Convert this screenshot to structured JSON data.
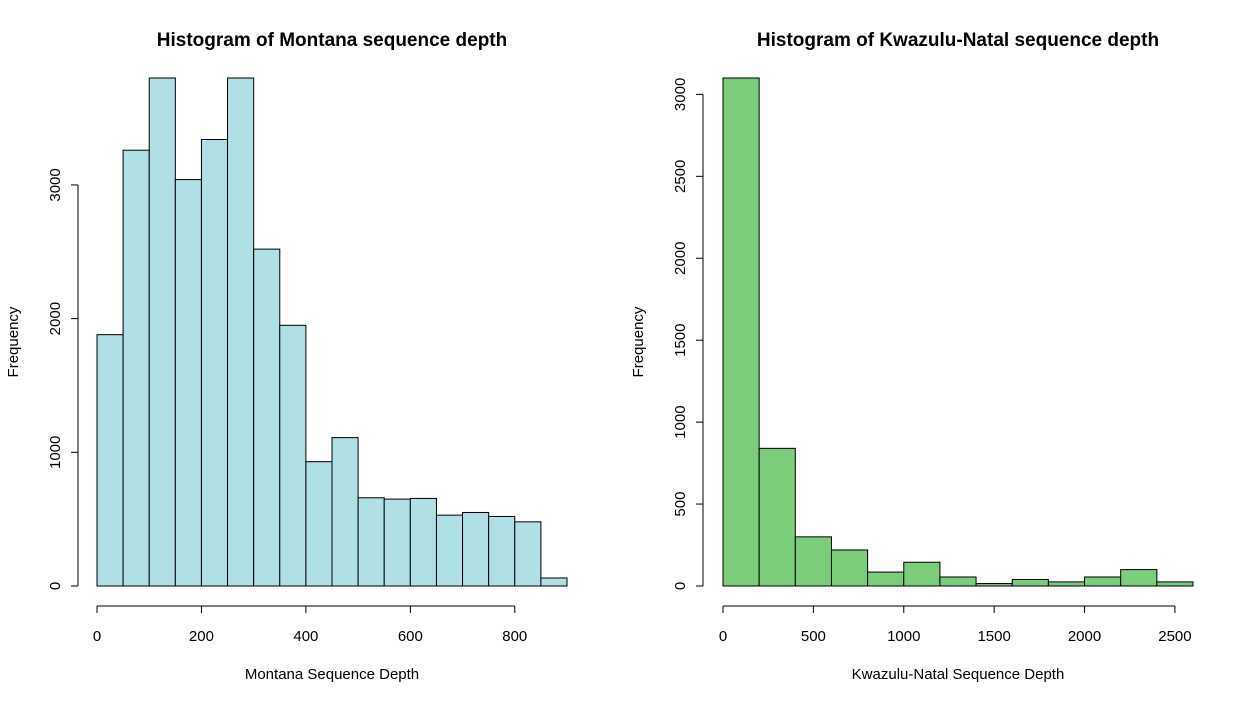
{
  "chart_data": [
    {
      "type": "bar",
      "title": "Histogram of Montana sequence depth",
      "xlabel": "Montana Sequence Depth",
      "ylabel": "Frequency",
      "bar_color": "#b0dfe5",
      "xlim": [
        0,
        900
      ],
      "ylim": [
        0,
        3800
      ],
      "x_ticks": [
        0,
        200,
        400,
        600,
        800
      ],
      "y_ticks": [
        0,
        1000,
        2000,
        3000
      ],
      "bins": [
        {
          "start": 0,
          "end": 50,
          "count": 1880
        },
        {
          "start": 50,
          "end": 100,
          "count": 3260
        },
        {
          "start": 100,
          "end": 150,
          "count": 3810
        },
        {
          "start": 150,
          "end": 200,
          "count": 3040
        },
        {
          "start": 200,
          "end": 250,
          "count": 3340
        },
        {
          "start": 250,
          "end": 300,
          "count": 3800
        },
        {
          "start": 300,
          "end": 350,
          "count": 2520
        },
        {
          "start": 350,
          "end": 400,
          "count": 1950
        },
        {
          "start": 400,
          "end": 450,
          "count": 930
        },
        {
          "start": 450,
          "end": 500,
          "count": 1110
        },
        {
          "start": 500,
          "end": 550,
          "count": 660
        },
        {
          "start": 550,
          "end": 600,
          "count": 650
        },
        {
          "start": 600,
          "end": 650,
          "count": 655
        },
        {
          "start": 650,
          "end": 700,
          "count": 530
        },
        {
          "start": 700,
          "end": 750,
          "count": 550
        },
        {
          "start": 750,
          "end": 800,
          "count": 520
        },
        {
          "start": 800,
          "end": 850,
          "count": 480
        },
        {
          "start": 850,
          "end": 900,
          "count": 60
        }
      ]
    },
    {
      "type": "bar",
      "title": "Histogram of Kwazulu-Natal sequence depth",
      "xlabel": "Kwazulu-Natal Sequence Depth",
      "ylabel": "Frequency",
      "bar_color": "#7bcd7b",
      "xlim": [
        0,
        2600
      ],
      "ylim": [
        0,
        3100
      ],
      "x_ticks": [
        0,
        500,
        1000,
        1500,
        2000,
        2500
      ],
      "y_ticks": [
        0,
        500,
        1000,
        1500,
        2000,
        2500,
        3000
      ],
      "bins": [
        {
          "start": 0,
          "end": 200,
          "count": 3100
        },
        {
          "start": 200,
          "end": 400,
          "count": 840
        },
        {
          "start": 400,
          "end": 600,
          "count": 300
        },
        {
          "start": 600,
          "end": 800,
          "count": 220
        },
        {
          "start": 800,
          "end": 1000,
          "count": 85
        },
        {
          "start": 1000,
          "end": 1200,
          "count": 145
        },
        {
          "start": 1200,
          "end": 1400,
          "count": 55
        },
        {
          "start": 1400,
          "end": 1600,
          "count": 15
        },
        {
          "start": 1600,
          "end": 1800,
          "count": 40
        },
        {
          "start": 1800,
          "end": 2000,
          "count": 25
        },
        {
          "start": 2000,
          "end": 2200,
          "count": 55
        },
        {
          "start": 2200,
          "end": 2400,
          "count": 100
        },
        {
          "start": 2400,
          "end": 2600,
          "count": 25
        }
      ]
    }
  ]
}
